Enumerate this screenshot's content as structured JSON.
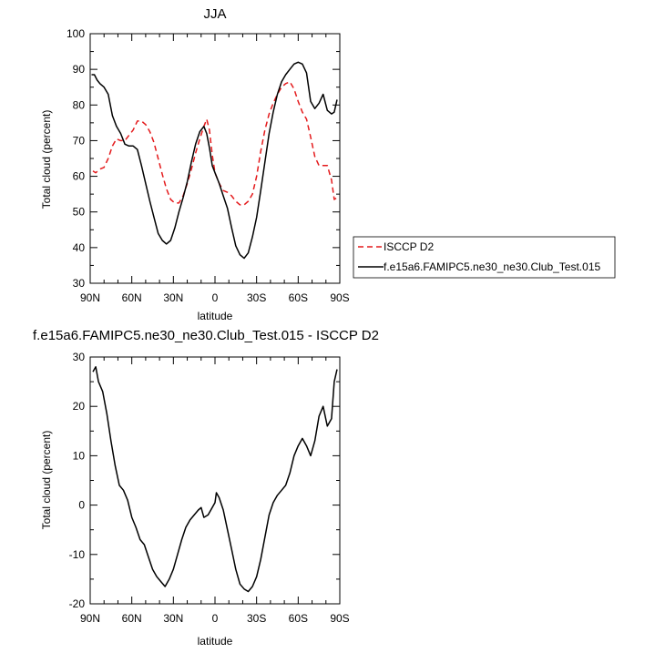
{
  "chart_data": [
    {
      "type": "line",
      "title": "JJA",
      "xlabel": "latitude",
      "ylabel": "Total cloud (percent)",
      "xlim": [
        90,
        -90
      ],
      "ylim": [
        30,
        100
      ],
      "xticks": [
        90,
        60,
        30,
        0,
        -30,
        -60,
        -90
      ],
      "xticklabels": [
        "90N",
        "60N",
        "30N",
        "0",
        "30S",
        "60S",
        "90S"
      ],
      "yticks": [
        30,
        40,
        50,
        60,
        70,
        80,
        90,
        100
      ],
      "legend_position": "outside-right",
      "series": [
        {
          "name": "ISCCP D2",
          "color": "#e41a1c",
          "style": "dashed",
          "points": [
            [
              88,
              61.5
            ],
            [
              86,
              61
            ],
            [
              83,
              62
            ],
            [
              80,
              62.5
            ],
            [
              77,
              65
            ],
            [
              74,
              68.5
            ],
            [
              71,
              70.5
            ],
            [
              68,
              70
            ],
            [
              65,
              70
            ],
            [
              62,
              71.5
            ],
            [
              59,
              73
            ],
            [
              56,
              75.5
            ],
            [
              53,
              75.5
            ],
            [
              50,
              74.5
            ],
            [
              47,
              72.5
            ],
            [
              44,
              69.5
            ],
            [
              41,
              65
            ],
            [
              38,
              60.5
            ],
            [
              35,
              56.5
            ],
            [
              32,
              53.5
            ],
            [
              29,
              52.5
            ],
            [
              26,
              52.5
            ],
            [
              23,
              54.5
            ],
            [
              20,
              58
            ],
            [
              17,
              62
            ],
            [
              14,
              66.5
            ],
            [
              11,
              70.5
            ],
            [
              8,
              74
            ],
            [
              6,
              76
            ],
            [
              4,
              73
            ],
            [
              2,
              66
            ],
            [
              0,
              61
            ],
            [
              -3,
              58
            ],
            [
              -6,
              56
            ],
            [
              -9,
              55.5
            ],
            [
              -12,
              54.5
            ],
            [
              -15,
              53
            ],
            [
              -18,
              52
            ],
            [
              -21,
              52
            ],
            [
              -24,
              53
            ],
            [
              -27,
              55
            ],
            [
              -30,
              60
            ],
            [
              -33,
              67
            ],
            [
              -36,
              73
            ],
            [
              -39,
              77.5
            ],
            [
              -42,
              80.5
            ],
            [
              -45,
              83
            ],
            [
              -48,
              85
            ],
            [
              -51,
              86
            ],
            [
              -54,
              86.5
            ],
            [
              -57,
              84.5
            ],
            [
              -60,
              81
            ],
            [
              -63,
              78
            ],
            [
              -66,
              76
            ],
            [
              -69,
              71
            ],
            [
              -72,
              65.5
            ],
            [
              -75,
              63
            ],
            [
              -78,
              63
            ],
            [
              -81,
              63
            ],
            [
              -84,
              59
            ],
            [
              -86,
              53.5
            ],
            [
              -88,
              54
            ]
          ]
        },
        {
          "name": "f.e15a6.FAMIPC5.ne30_ne30.Club_Test.015",
          "color": "#000000",
          "style": "solid",
          "points": [
            [
              89,
              88.5
            ],
            [
              87,
              88.5
            ],
            [
              85,
              87
            ],
            [
              83,
              86
            ],
            [
              80,
              85
            ],
            [
              77,
              83
            ],
            [
              74,
              77
            ],
            [
              71,
              74
            ],
            [
              68,
              72
            ],
            [
              65,
              69
            ],
            [
              62,
              68.5
            ],
            [
              59,
              68.5
            ],
            [
              56,
              67.5
            ],
            [
              53,
              63
            ],
            [
              50,
              58
            ],
            [
              47,
              53
            ],
            [
              44,
              48.5
            ],
            [
              41,
              44
            ],
            [
              38,
              42
            ],
            [
              35,
              41
            ],
            [
              32,
              42
            ],
            [
              29,
              45.5
            ],
            [
              26,
              50
            ],
            [
              23,
              54
            ],
            [
              20,
              58.5
            ],
            [
              17,
              64
            ],
            [
              14,
              69
            ],
            [
              11,
              72.5
            ],
            [
              8,
              74
            ],
            [
              6,
              72
            ],
            [
              4,
              68
            ],
            [
              2,
              63
            ],
            [
              0,
              61
            ],
            [
              -3,
              58
            ],
            [
              -6,
              54.5
            ],
            [
              -9,
              51
            ],
            [
              -12,
              45.5
            ],
            [
              -15,
              40.5
            ],
            [
              -18,
              38
            ],
            [
              -21,
              37
            ],
            [
              -24,
              38.5
            ],
            [
              -27,
              43
            ],
            [
              -30,
              48.5
            ],
            [
              -33,
              56
            ],
            [
              -36,
              64
            ],
            [
              -39,
              72
            ],
            [
              -42,
              78
            ],
            [
              -45,
              83
            ],
            [
              -48,
              86.5
            ],
            [
              -51,
              88.5
            ],
            [
              -54,
              90
            ],
            [
              -57,
              91.5
            ],
            [
              -60,
              92
            ],
            [
              -63,
              91.5
            ],
            [
              -66,
              89
            ],
            [
              -69,
              81
            ],
            [
              -72,
              79
            ],
            [
              -75,
              80.5
            ],
            [
              -78,
              83
            ],
            [
              -81,
              78.5
            ],
            [
              -84,
              77.5
            ],
            [
              -86,
              78
            ],
            [
              -88,
              81.5
            ]
          ]
        }
      ]
    },
    {
      "type": "line",
      "title": "f.e15a6.FAMIPC5.ne30_ne30.Club_Test.015 - ISCCP D2",
      "xlabel": "latitude",
      "ylabel": "Total cloud (percent)",
      "xlim": [
        90,
        -90
      ],
      "ylim": [
        -20,
        30
      ],
      "xticks": [
        90,
        60,
        30,
        0,
        -30,
        -60,
        -90
      ],
      "xticklabels": [
        "90N",
        "60N",
        "30N",
        "0",
        "30S",
        "60S",
        "90S"
      ],
      "yticks": [
        -20,
        -10,
        0,
        10,
        20,
        30
      ],
      "series": [
        {
          "color": "#000000",
          "style": "solid",
          "points": [
            [
              88,
              27
            ],
            [
              86,
              28
            ],
            [
              84,
              25
            ],
            [
              81,
              23
            ],
            [
              78,
              18.5
            ],
            [
              75,
              13
            ],
            [
              72,
              8
            ],
            [
              69,
              4
            ],
            [
              66,
              3
            ],
            [
              63,
              1
            ],
            [
              60,
              -2.5
            ],
            [
              57,
              -4.5
            ],
            [
              54,
              -7
            ],
            [
              51,
              -8
            ],
            [
              48,
              -10.5
            ],
            [
              45,
              -13
            ],
            [
              42,
              -14.5
            ],
            [
              39,
              -15.5
            ],
            [
              36,
              -16.5
            ],
            [
              33,
              -15
            ],
            [
              30,
              -13
            ],
            [
              27,
              -10
            ],
            [
              24,
              -7
            ],
            [
              21,
              -4.5
            ],
            [
              18,
              -3
            ],
            [
              15,
              -2
            ],
            [
              12,
              -1
            ],
            [
              10,
              -0.5
            ],
            [
              8,
              -2.5
            ],
            [
              5,
              -2
            ],
            [
              2,
              -0.5
            ],
            [
              0,
              0.5
            ],
            [
              -1,
              2.5
            ],
            [
              -3,
              1.5
            ],
            [
              -6,
              -1
            ],
            [
              -9,
              -5
            ],
            [
              -12,
              -9
            ],
            [
              -15,
              -13
            ],
            [
              -18,
              -16
            ],
            [
              -21,
              -17
            ],
            [
              -24,
              -17.5
            ],
            [
              -27,
              -16.5
            ],
            [
              -30,
              -14.5
            ],
            [
              -33,
              -11
            ],
            [
              -36,
              -6.5
            ],
            [
              -39,
              -2
            ],
            [
              -42,
              0.5
            ],
            [
              -45,
              2
            ],
            [
              -48,
              3
            ],
            [
              -51,
              4
            ],
            [
              -54,
              6.5
            ],
            [
              -57,
              10
            ],
            [
              -60,
              12
            ],
            [
              -63,
              13.5
            ],
            [
              -66,
              12
            ],
            [
              -69,
              10
            ],
            [
              -72,
              13
            ],
            [
              -75,
              18
            ],
            [
              -78,
              20
            ],
            [
              -81,
              16
            ],
            [
              -84,
              17.5
            ],
            [
              -86,
              25
            ],
            [
              -88,
              27.5
            ]
          ]
        }
      ]
    }
  ]
}
